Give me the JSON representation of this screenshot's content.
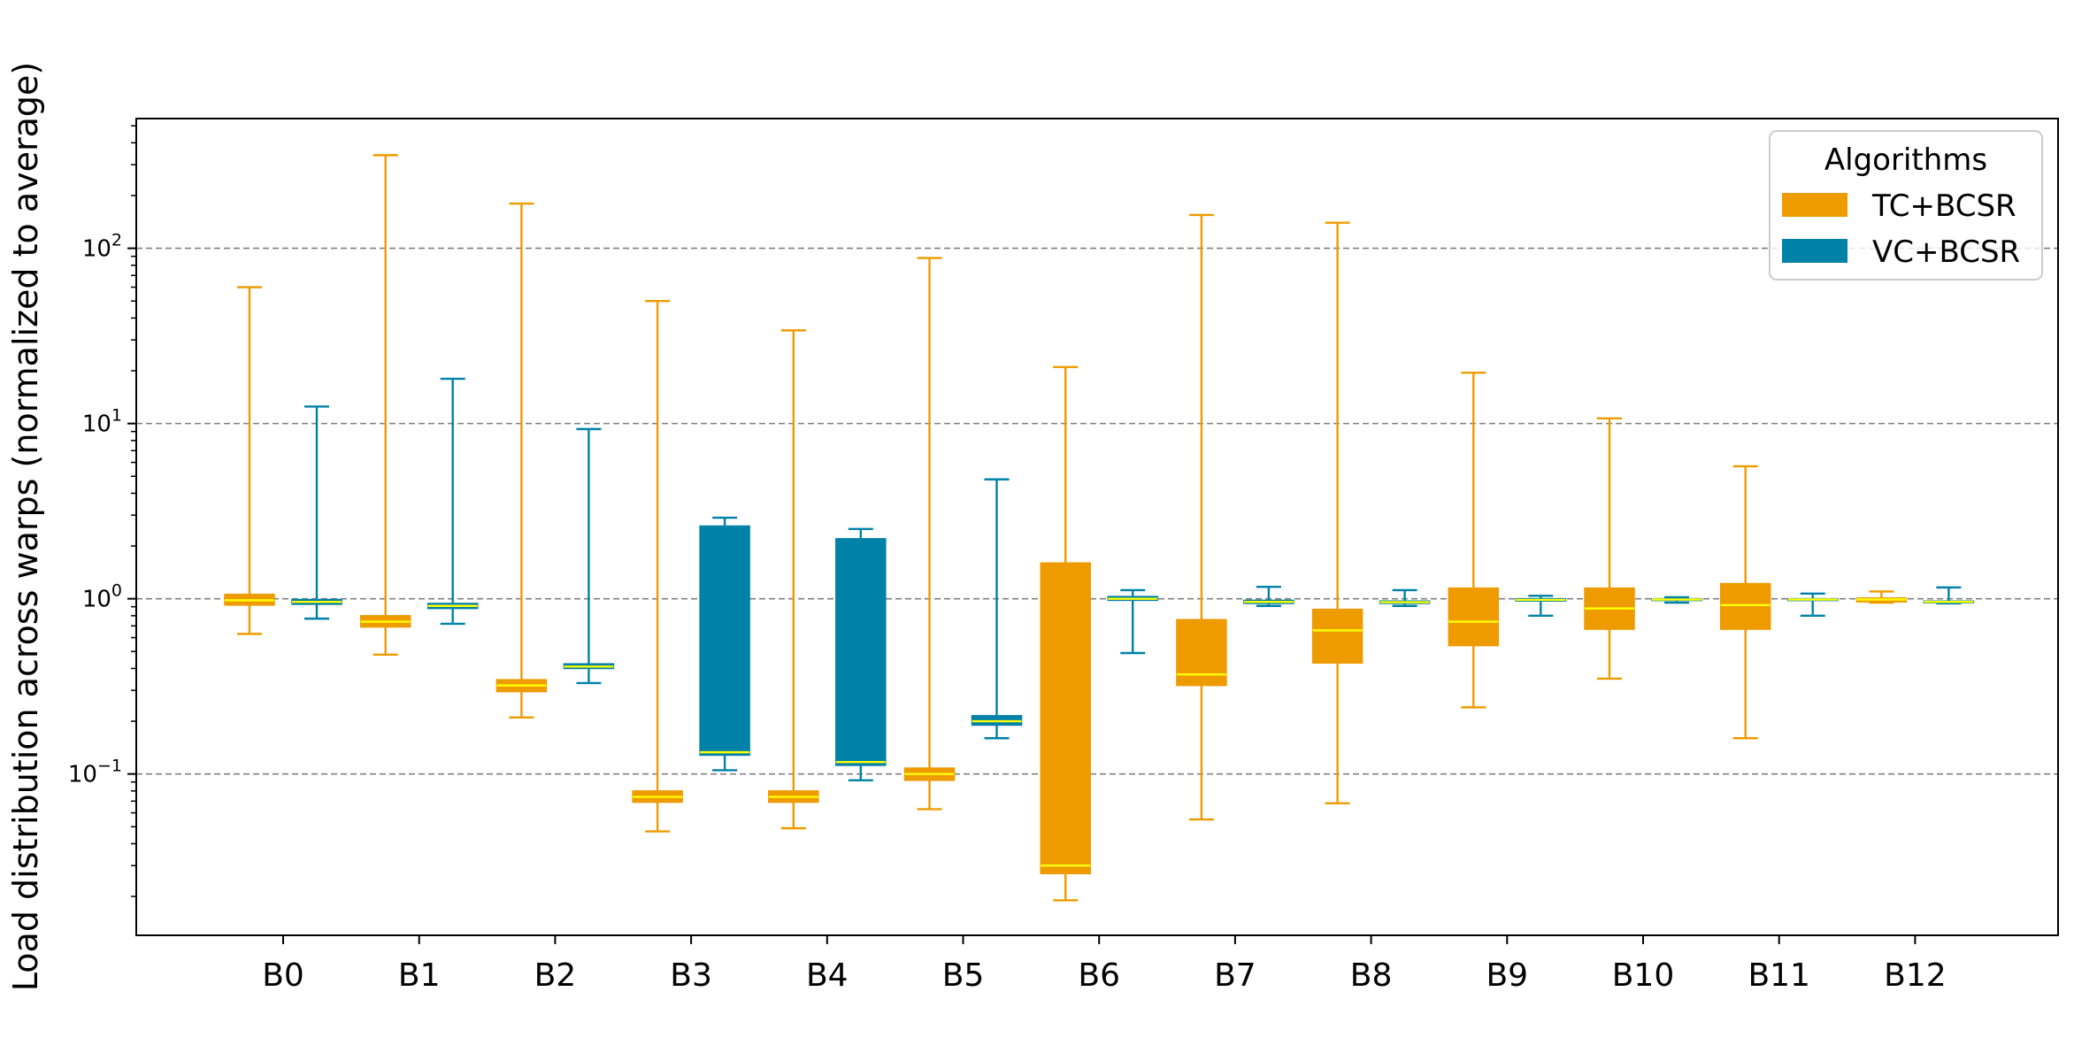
{
  "chart_data": {
    "type": "box",
    "title": "",
    "xlabel": "",
    "ylabel": "Load distribution across warps (normalized to average)",
    "yscale": "log",
    "ylim": [
      0.012,
      550
    ],
    "grid": "y-major-dashed",
    "legend": {
      "title": "Algorithms",
      "placement": "top-right",
      "entries": [
        "TC+BCSR",
        "VC+BCSR"
      ]
    },
    "y_ticks": [
      {
        "value": 0.1,
        "base": "10",
        "exp": "−1"
      },
      {
        "value": 1,
        "base": "10",
        "exp": "0"
      },
      {
        "value": 10,
        "base": "10",
        "exp": "1"
      },
      {
        "value": 100,
        "base": "10",
        "exp": "2"
      }
    ],
    "categories": [
      "B0",
      "B1",
      "B2",
      "B3",
      "B4",
      "B5",
      "B6",
      "B7",
      "B8",
      "B9",
      "B10",
      "B11",
      "B12"
    ],
    "median_color": "#ffff00",
    "series": [
      {
        "name": "TC+BCSR",
        "color": "#ee9b00",
        "boxes": [
          {
            "whislo": 0.63,
            "q1": 0.92,
            "med": 0.98,
            "q3": 1.06,
            "whishi": 60
          },
          {
            "whislo": 0.48,
            "q1": 0.69,
            "med": 0.74,
            "q3": 0.8,
            "whishi": 340
          },
          {
            "whislo": 0.21,
            "q1": 0.295,
            "med": 0.32,
            "q3": 0.345,
            "whishi": 180
          },
          {
            "whislo": 0.047,
            "q1": 0.069,
            "med": 0.074,
            "q3": 0.08,
            "whishi": 50
          },
          {
            "whislo": 0.049,
            "q1": 0.069,
            "med": 0.074,
            "q3": 0.08,
            "whishi": 34
          },
          {
            "whislo": 0.063,
            "q1": 0.092,
            "med": 0.1,
            "q3": 0.108,
            "whishi": 88
          },
          {
            "whislo": 0.019,
            "q1": 0.027,
            "med": 0.03,
            "q3": 1.6,
            "whishi": 21
          },
          {
            "whislo": 0.055,
            "q1": 0.32,
            "med": 0.37,
            "q3": 0.76,
            "whishi": 155
          },
          {
            "whislo": 0.068,
            "q1": 0.43,
            "med": 0.66,
            "q3": 0.87,
            "whishi": 140
          },
          {
            "whislo": 0.24,
            "q1": 0.54,
            "med": 0.74,
            "q3": 1.15,
            "whishi": 19.5
          },
          {
            "whislo": 0.35,
            "q1": 0.67,
            "med": 0.88,
            "q3": 1.15,
            "whishi": 10.7
          },
          {
            "whislo": 0.16,
            "q1": 0.67,
            "med": 0.92,
            "q3": 1.22,
            "whishi": 5.7
          },
          {
            "whislo": 0.95,
            "q1": 0.96,
            "med": 0.99,
            "q3": 1.01,
            "whishi": 1.1
          }
        ]
      },
      {
        "name": "VC+BCSR",
        "color": "#0081a7",
        "boxes": [
          {
            "whislo": 0.77,
            "q1": 0.93,
            "med": 0.96,
            "q3": 0.99,
            "whishi": 12.5
          },
          {
            "whislo": 0.72,
            "q1": 0.88,
            "med": 0.91,
            "q3": 0.94,
            "whishi": 18
          },
          {
            "whislo": 0.33,
            "q1": 0.4,
            "med": 0.41,
            "q3": 0.425,
            "whishi": 9.3
          },
          {
            "whislo": 0.105,
            "q1": 0.128,
            "med": 0.133,
            "q3": 2.6,
            "whishi": 2.9
          },
          {
            "whislo": 0.092,
            "q1": 0.112,
            "med": 0.117,
            "q3": 2.2,
            "whishi": 2.5
          },
          {
            "whislo": 0.16,
            "q1": 0.19,
            "med": 0.2,
            "q3": 0.215,
            "whishi": 4.8
          },
          {
            "whislo": 0.49,
            "q1": 0.98,
            "med": 1.0,
            "q3": 1.03,
            "whishi": 1.12
          },
          {
            "whislo": 0.91,
            "q1": 0.94,
            "med": 0.96,
            "q3": 0.98,
            "whishi": 1.17
          },
          {
            "whislo": 0.91,
            "q1": 0.94,
            "med": 0.955,
            "q3": 0.97,
            "whishi": 1.12
          },
          {
            "whislo": 0.8,
            "q1": 0.97,
            "med": 0.985,
            "q3": 1.0,
            "whishi": 1.04
          },
          {
            "whislo": 0.95,
            "q1": 0.98,
            "med": 0.99,
            "q3": 1.0,
            "whishi": 1.02
          },
          {
            "whislo": 0.8,
            "q1": 0.98,
            "med": 0.99,
            "q3": 1.0,
            "whishi": 1.07
          },
          {
            "whislo": 0.94,
            "q1": 0.95,
            "med": 0.96,
            "q3": 0.97,
            "whishi": 1.16
          }
        ]
      }
    ]
  }
}
